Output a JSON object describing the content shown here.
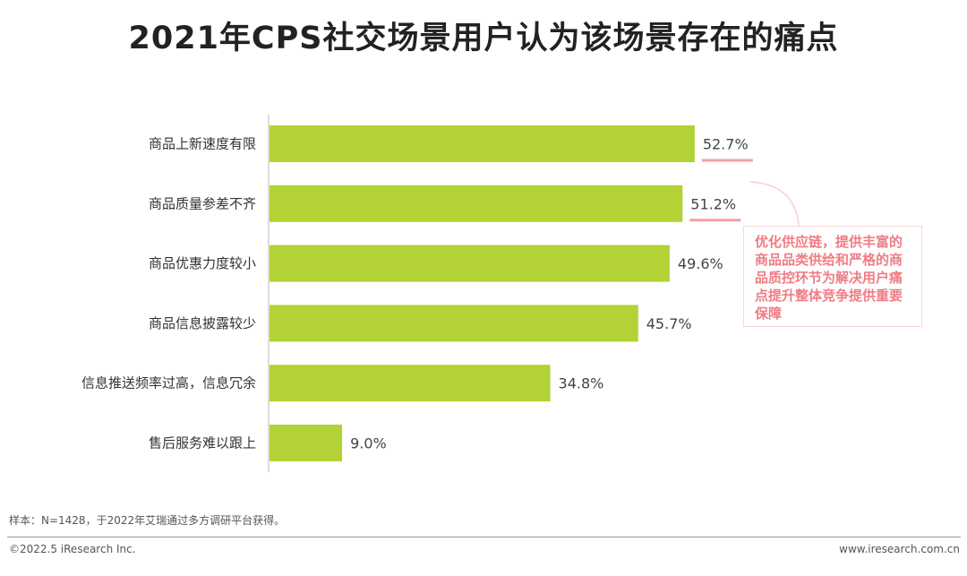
{
  "chart_data": {
    "type": "bar",
    "orientation": "horizontal",
    "title": "2021年CPS社交场景用户认为该场景存在的痛点",
    "categories": [
      "商品上新速度有限",
      "商品质量参差不齐",
      "商品优惠力度较小",
      "商品信息披露较少",
      "信息推送频率过高，信息冗余",
      "售后服务难以跟上"
    ],
    "values": [
      52.7,
      51.2,
      49.6,
      45.7,
      34.8,
      9.0
    ],
    "data_labels": [
      "52.7%",
      "51.2%",
      "49.6%",
      "45.7%",
      "34.8%",
      "9.0%"
    ],
    "highlighted": [
      0,
      1
    ],
    "unit": "%",
    "grid": false,
    "colors": {
      "bar": "#b2d235",
      "highlight": "#f4a0a6",
      "annotation": "#f07c84"
    },
    "annotation": "优化供应链，提供丰富的商品品类供给和严格的商品质控环节为解决用户痛点提升整体竞争提供重要保障"
  },
  "footer": {
    "sample": "样本：N=1428，于2022年艾瑞通过多方调研平台获得。",
    "copyright": "©2022.5 iResearch Inc.",
    "website": "www.iresearch.com.cn"
  }
}
